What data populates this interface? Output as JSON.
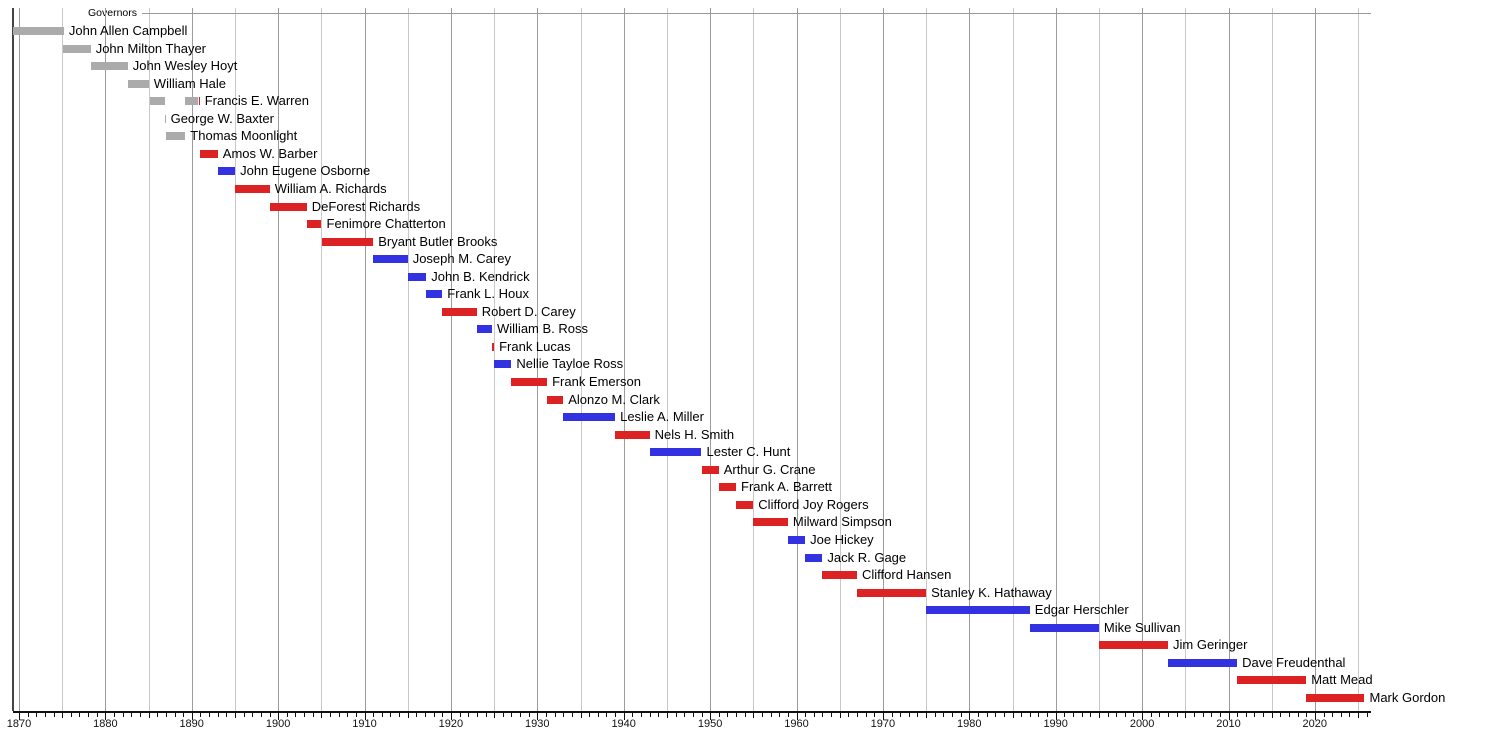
{
  "chart_data": {
    "type": "gantt-timeline",
    "title": "Governors",
    "x_axis": {
      "min": 1869.31,
      "max": 2026.5,
      "tick_label_years": [
        1870,
        1880,
        1890,
        1900,
        1910,
        1920,
        1930,
        1940,
        1950,
        1960,
        1970,
        1980,
        1990,
        2000,
        2010,
        2020
      ],
      "gridline_first": 1870,
      "gridline_last": 2025,
      "gridline_step_years": 5,
      "minor_tick_step_years": 1,
      "grid_on": true
    },
    "party_colors": {
      "territorial": "#ABABAB",
      "republican": "#DC2222",
      "democratic": "#3232E0"
    },
    "colors": {
      "grid_major": "#9C9C9C",
      "grid_minor": "#C9C9C9",
      "top_border": "#999999",
      "left_axis": "#444444",
      "bottom_axis": "#111111",
      "text": "#000000"
    },
    "rows": [
      {
        "name": "John Allen Campbell",
        "party": "territorial",
        "segments": [
          {
            "start": 1869.3,
            "end": 1875.2,
            "party": "territorial"
          }
        ]
      },
      {
        "name": "John Milton Thayer",
        "party": "territorial",
        "segments": [
          {
            "start": 1875.1,
            "end": 1878.3,
            "party": "territorial"
          }
        ]
      },
      {
        "name": "John Wesley Hoyt",
        "party": "territorial",
        "segments": [
          {
            "start": 1878.3,
            "end": 1882.6,
            "party": "territorial"
          }
        ]
      },
      {
        "name": "William Hale",
        "party": "territorial",
        "segments": [
          {
            "start": 1882.6,
            "end": 1885.03,
            "party": "territorial"
          }
        ]
      },
      {
        "name": "Francis E. Warren",
        "party": "territorial",
        "segments": [
          {
            "start": 1885.13,
            "end": 1886.87,
            "party": "territorial"
          },
          {
            "start": 1889.2,
            "end": 1890.78,
            "party": "territorial"
          },
          {
            "start": 1890.78,
            "end": 1890.92,
            "party": "republican"
          }
        ]
      },
      {
        "name": "George W. Baxter",
        "party": "territorial",
        "segments": [
          {
            "start": 1886.85,
            "end": 1886.97,
            "party": "territorial"
          }
        ]
      },
      {
        "name": "Thomas Moonlight",
        "party": "territorial",
        "segments": [
          {
            "start": 1887.05,
            "end": 1889.25,
            "party": "territorial"
          }
        ]
      },
      {
        "name": "Amos W. Barber",
        "party": "republican",
        "segments": [
          {
            "start": 1890.9,
            "end": 1893.02,
            "party": "republican"
          }
        ]
      },
      {
        "name": "John Eugene Osborne",
        "party": "democratic",
        "segments": [
          {
            "start": 1893.02,
            "end": 1895.02,
            "party": "democratic"
          }
        ]
      },
      {
        "name": "William A. Richards",
        "party": "republican",
        "segments": [
          {
            "start": 1895.02,
            "end": 1899.02,
            "party": "republican"
          }
        ]
      },
      {
        "name": "DeForest Richards",
        "party": "republican",
        "segments": [
          {
            "start": 1899.02,
            "end": 1903.32,
            "party": "republican"
          }
        ]
      },
      {
        "name": "Fenimore Chatterton",
        "party": "republican",
        "segments": [
          {
            "start": 1903.32,
            "end": 1905.02,
            "party": "republican"
          }
        ]
      },
      {
        "name": "Bryant Butler Brooks",
        "party": "republican",
        "segments": [
          {
            "start": 1905.02,
            "end": 1911.0,
            "party": "republican"
          }
        ]
      },
      {
        "name": "Joseph M. Carey",
        "party": "democratic",
        "segments": [
          {
            "start": 1911.0,
            "end": 1915.0,
            "party": "democratic"
          }
        ]
      },
      {
        "name": "John B. Kendrick",
        "party": "democratic",
        "segments": [
          {
            "start": 1915.0,
            "end": 1917.15,
            "party": "democratic"
          }
        ]
      },
      {
        "name": "Frank L. Houx",
        "party": "democratic",
        "segments": [
          {
            "start": 1917.15,
            "end": 1919.0,
            "party": "democratic"
          }
        ]
      },
      {
        "name": "Robert D. Carey",
        "party": "republican",
        "segments": [
          {
            "start": 1919.0,
            "end": 1923.0,
            "party": "republican"
          }
        ]
      },
      {
        "name": "William B. Ross",
        "party": "democratic",
        "segments": [
          {
            "start": 1923.0,
            "end": 1924.75,
            "party": "democratic"
          }
        ]
      },
      {
        "name": "Frank Lucas",
        "party": "republican",
        "segments": [
          {
            "start": 1924.75,
            "end": 1925.0,
            "party": "republican"
          }
        ]
      },
      {
        "name": "Nellie Tayloe Ross",
        "party": "democratic",
        "segments": [
          {
            "start": 1925.0,
            "end": 1927.0,
            "party": "democratic"
          }
        ]
      },
      {
        "name": "Frank Emerson",
        "party": "republican",
        "segments": [
          {
            "start": 1927.0,
            "end": 1931.13,
            "party": "republican"
          }
        ]
      },
      {
        "name": "Alonzo M. Clark",
        "party": "republican",
        "segments": [
          {
            "start": 1931.13,
            "end": 1933.0,
            "party": "republican"
          }
        ]
      },
      {
        "name": "Leslie A. Miller",
        "party": "democratic",
        "segments": [
          {
            "start": 1933.0,
            "end": 1939.0,
            "party": "democratic"
          }
        ]
      },
      {
        "name": "Nels H. Smith",
        "party": "republican",
        "segments": [
          {
            "start": 1939.0,
            "end": 1943.0,
            "party": "republican"
          }
        ]
      },
      {
        "name": "Lester C. Hunt",
        "party": "democratic",
        "segments": [
          {
            "start": 1943.0,
            "end": 1949.0,
            "party": "democratic"
          }
        ]
      },
      {
        "name": "Arthur G. Crane",
        "party": "republican",
        "segments": [
          {
            "start": 1949.0,
            "end": 1951.0,
            "party": "republican"
          }
        ]
      },
      {
        "name": "Frank A. Barrett",
        "party": "republican",
        "segments": [
          {
            "start": 1951.0,
            "end": 1953.0,
            "party": "republican"
          }
        ]
      },
      {
        "name": "Clifford Joy Rogers",
        "party": "republican",
        "segments": [
          {
            "start": 1953.0,
            "end": 1955.0,
            "party": "republican"
          }
        ]
      },
      {
        "name": "Milward Simpson",
        "party": "republican",
        "segments": [
          {
            "start": 1955.0,
            "end": 1959.0,
            "party": "republican"
          }
        ]
      },
      {
        "name": "Joe Hickey",
        "party": "democratic",
        "segments": [
          {
            "start": 1959.0,
            "end": 1961.0,
            "party": "democratic"
          }
        ]
      },
      {
        "name": "Jack R. Gage",
        "party": "democratic",
        "segments": [
          {
            "start": 1961.0,
            "end": 1963.0,
            "party": "democratic"
          }
        ]
      },
      {
        "name": "Clifford Hansen",
        "party": "republican",
        "segments": [
          {
            "start": 1963.0,
            "end": 1967.0,
            "party": "republican"
          }
        ]
      },
      {
        "name": "Stanley K. Hathaway",
        "party": "republican",
        "segments": [
          {
            "start": 1967.0,
            "end": 1975.0,
            "party": "republican"
          }
        ]
      },
      {
        "name": "Edgar Herschler",
        "party": "democratic",
        "segments": [
          {
            "start": 1975.0,
            "end": 1987.0,
            "party": "democratic"
          }
        ]
      },
      {
        "name": "Mike Sullivan",
        "party": "democratic",
        "segments": [
          {
            "start": 1987.0,
            "end": 1995.0,
            "party": "democratic"
          }
        ]
      },
      {
        "name": "Jim Geringer",
        "party": "republican",
        "segments": [
          {
            "start": 1995.0,
            "end": 2003.0,
            "party": "republican"
          }
        ]
      },
      {
        "name": "Dave Freudenthal",
        "party": "democratic",
        "segments": [
          {
            "start": 2003.0,
            "end": 2011.0,
            "party": "democratic"
          }
        ]
      },
      {
        "name": "Matt Mead",
        "party": "republican",
        "segments": [
          {
            "start": 2011.0,
            "end": 2019.0,
            "party": "republican"
          }
        ]
      },
      {
        "name": "Mark Gordon",
        "party": "republican",
        "segments": [
          {
            "start": 2019.0,
            "end": 2025.75,
            "party": "republican"
          }
        ]
      }
    ]
  }
}
